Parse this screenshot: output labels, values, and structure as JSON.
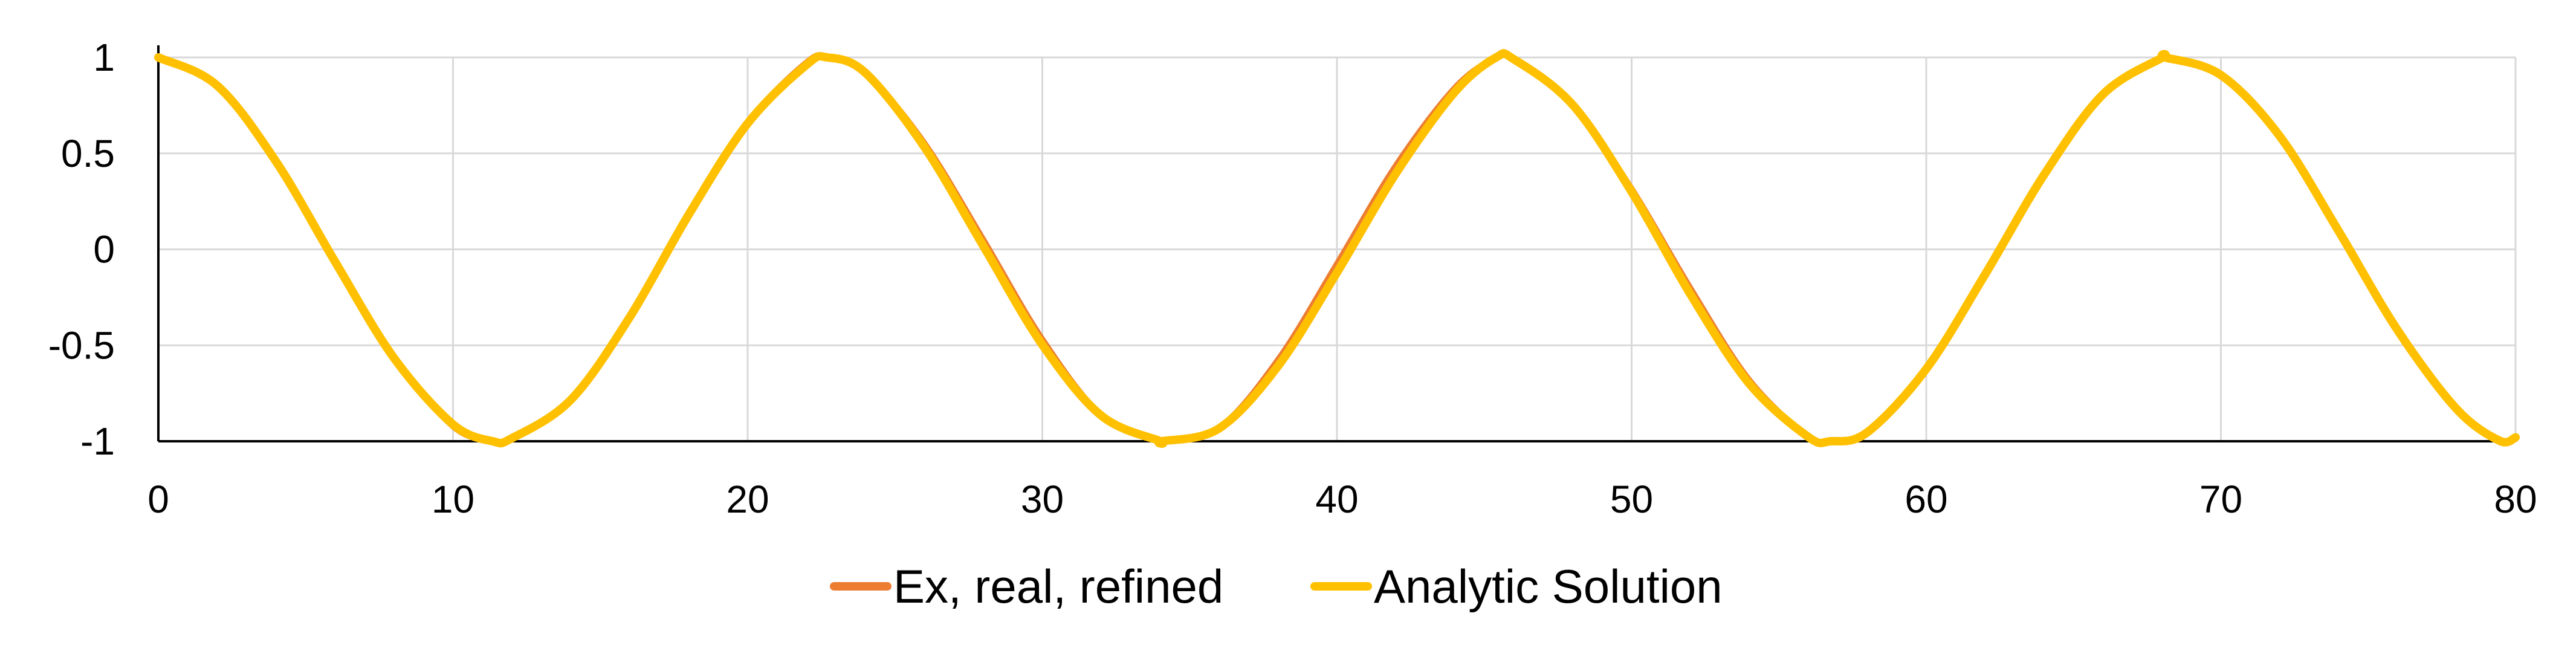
{
  "chart_data": {
    "type": "line",
    "title": "",
    "xlabel": "",
    "ylabel": "",
    "xlim": [
      0,
      80
    ],
    "ylim": [
      -1,
      1
    ],
    "x_ticks": [
      "0",
      "10",
      "20",
      "30",
      "40",
      "50",
      "60",
      "70",
      "80"
    ],
    "y_ticks": [
      "1",
      "0.5",
      "0",
      "-0.5",
      "-1"
    ],
    "grid": true,
    "legend_position": "bottom",
    "series": [
      {
        "name": "Ex, real, refined",
        "color": "#ED7D31",
        "x": [
          0,
          2,
          4,
          6,
          8,
          10,
          11.35,
          12,
          14,
          16,
          18,
          20,
          22,
          22.7,
          24,
          26,
          28,
          30,
          32,
          34,
          34.05,
          36,
          38,
          40,
          42,
          44,
          45.4,
          46,
          48,
          50,
          52,
          54,
          56,
          56.75,
          58,
          60,
          62,
          64,
          66,
          68,
          68.1,
          70,
          72,
          74,
          76,
          78,
          79.45,
          80
        ],
        "y": [
          1,
          0.853,
          0.456,
          -0.062,
          -0.564,
          -0.924,
          -1,
          -0.984,
          -0.776,
          -0.339,
          0.183,
          0.664,
          0.976,
          1,
          0.922,
          0.555,
          0.052,
          -0.466,
          -0.86,
          -0.999,
          -1,
          -0.927,
          -0.573,
          -0.073,
          0.439,
          0.843,
          1,
          0.985,
          0.752,
          0.318,
          -0.201,
          -0.68,
          -0.977,
          -1,
          -0.951,
          -0.623,
          -0.126,
          0.393,
          0.813,
          0.998,
          1,
          0.913,
          0.589,
          0.083,
          -0.429,
          -0.838,
          -0.998,
          -0.99
        ]
      },
      {
        "name": "Analytic Solution",
        "color": "#FFC000",
        "x": [
          0,
          2,
          4,
          6,
          8,
          10,
          11.35,
          12,
          14,
          16,
          18,
          20,
          22,
          22.7,
          24,
          26,
          28,
          30,
          32,
          34,
          34.05,
          36,
          38,
          40,
          42,
          44,
          45.4,
          46,
          48,
          50,
          52,
          54,
          56,
          56.75,
          58,
          60,
          62,
          64,
          66,
          68,
          68.1,
          70,
          72,
          74,
          76,
          78,
          79.45,
          80
        ],
        "y": [
          1,
          0.853,
          0.456,
          -0.065,
          -0.567,
          -0.912,
          -1,
          -0.984,
          -0.784,
          -0.353,
          0.181,
          0.656,
          0.962,
          1,
          0.919,
          0.533,
          0.017,
          -0.497,
          -0.866,
          -0.999,
          -1,
          -0.933,
          -0.608,
          -0.121,
          0.396,
          0.82,
          1,
          0.991,
          0.753,
          0.3,
          -0.235,
          -0.701,
          -0.978,
          -1,
          -0.953,
          -0.623,
          -0.13,
          0.389,
          0.808,
          0.998,
          1,
          0.908,
          0.589,
          0.094,
          -0.422,
          -0.832,
          -0.997,
          -0.98
        ]
      }
    ]
  }
}
